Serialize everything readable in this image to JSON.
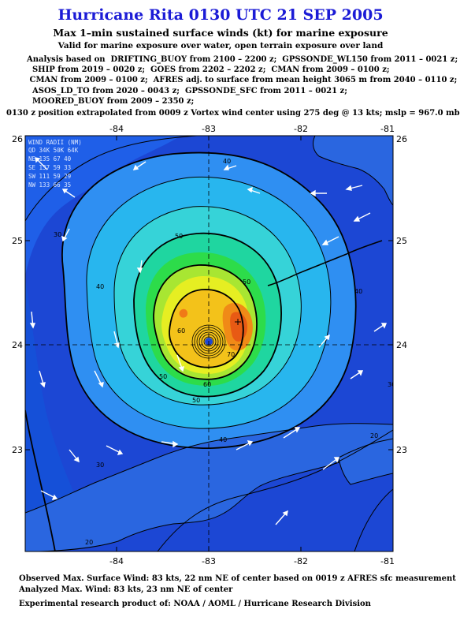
{
  "header": {
    "title": "Hurricane Rita 0130 UTC 21 SEP 2005",
    "subtitle": "Max 1–min sustained surface winds (kt) for marine exposure",
    "subtitle2": "Valid for marine exposure over water, open terrain exposure over land"
  },
  "analysis_lines": [
    "Analysis based on  DRIFTING_BUOY from 2100 – 2200 z;  GPSSONDE_WL150 from 2011 – 0021 z;",
    "  SHIP from 2019 – 0020 z;  GOES from 2202 – 2202 z;  CMAN from 2009 – 0100 z;",
    " CMAN from 2009 – 0100 z;  AFRES adj. to surface from mean height 3065 m from 2040 – 0110 z;",
    "  ASOS_LD_TO from 2020 – 0043 z;  GPSSONDE_SFC from 2011 – 0021 z;",
    "  MOORED_BUOY from 2009 – 2350 z;"
  ],
  "position_line": "0130 z position extrapolated from 0009 z Vortex wind center using 275 deg @ 13 kts; mslp = 967.0 mb",
  "map": {
    "lon_labels": [
      "-84",
      "-83",
      "-82",
      "-81"
    ],
    "lat_labels": [
      "26",
      "25",
      "24",
      "23"
    ],
    "contour_labels": [
      "40",
      "50",
      "40",
      "30",
      "50",
      "60",
      "70",
      "60",
      "50",
      "40",
      "30",
      "20",
      "40",
      "20",
      "30",
      "50"
    ],
    "legend": {
      "title": "WIND RADII (NM)",
      "header": "QD 34K 50K 64K",
      "rows": [
        "NE  135  67  40",
        "SE  137  59  33",
        "SW  111  59  29",
        "NW  133  66  35"
      ]
    }
  },
  "footer": {
    "observed": "Observed Max. Surface Wind: 83 kts, 22 nm NE of center based on 0019 z AFRES sfc measurement",
    "analyzed": "Analyzed Max. Wind: 83 kts, 23 nm NE of center",
    "credit": "Experimental research product of:  NOAA / AOML / Hurricane Research Division"
  }
}
